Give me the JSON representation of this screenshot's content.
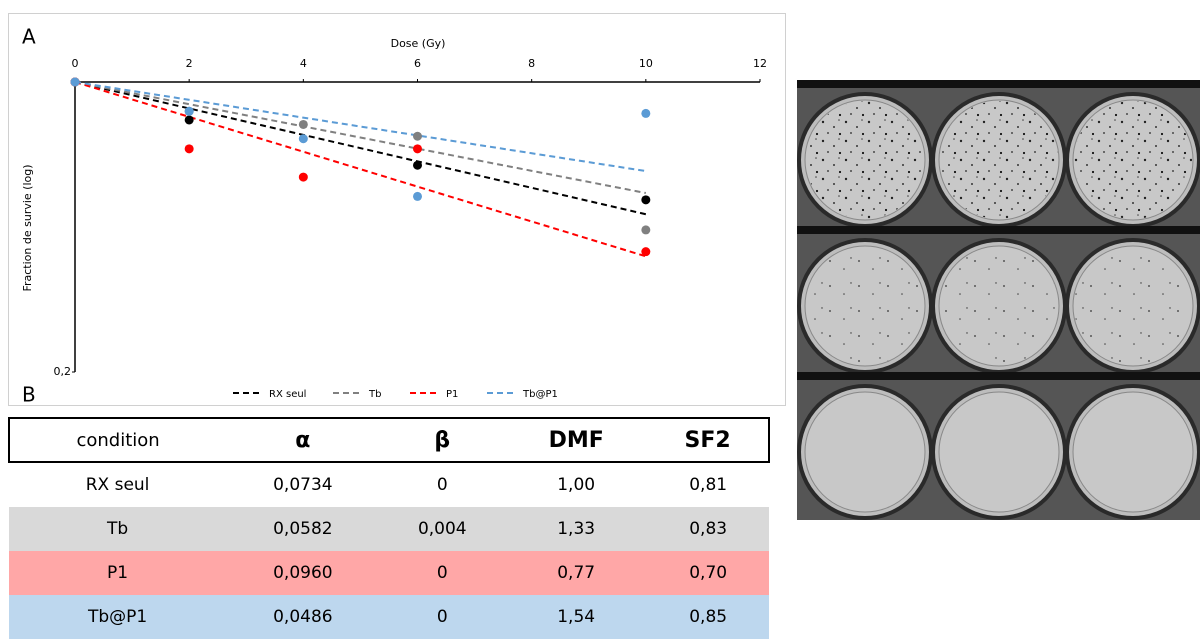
{
  "panel_labels": [
    "A",
    "B"
  ],
  "chart_data": {
    "type": "scatter",
    "x_label": "Dose (Gy)",
    "y_label": "Fraction de survie (log)",
    "xlim": [
      0,
      12
    ],
    "xticks": [
      0,
      2,
      4,
      6,
      8,
      10,
      12
    ],
    "ylim": [
      0.2,
      1
    ],
    "yticks": [
      {
        "value": 0.2,
        "label": "0,2"
      }
    ],
    "y_log": true,
    "grid": false,
    "legend": "bottom",
    "series": [
      {
        "name": "RX seul",
        "color": "#000000",
        "x": [
          0,
          2,
          6,
          10
        ],
        "values": [
          1,
          0.81,
          0.63,
          0.52
        ],
        "fit_x": [
          0,
          10
        ],
        "fit": [
          1,
          0.48
        ]
      },
      {
        "name": "Tb",
        "color": "#808080",
        "x": [
          0,
          2,
          4,
          6,
          10
        ],
        "values": [
          1,
          0.85,
          0.79,
          0.74,
          0.44
        ],
        "fit_x": [
          0,
          10
        ],
        "fit": [
          1,
          0.54
        ]
      },
      {
        "name": "P1",
        "color": "#ff0000",
        "x": [
          0,
          2,
          4,
          6,
          10
        ],
        "values": [
          1,
          0.69,
          0.59,
          0.69,
          0.39
        ],
        "fit_x": [
          0,
          10
        ],
        "fit": [
          1,
          0.38
        ]
      },
      {
        "name": "Tb@P1",
        "color": "#5b9bd5",
        "x": [
          0,
          2,
          4,
          6,
          10
        ],
        "values": [
          1,
          0.85,
          0.73,
          0.53,
          0.84
        ],
        "fit_x": [
          0,
          10
        ],
        "fit": [
          1,
          0.61
        ]
      }
    ]
  },
  "table": {
    "header": [
      "condition",
      "α",
      "β",
      "DMF",
      "SF2"
    ],
    "rows": [
      [
        "RX seul",
        "0,0734",
        "0",
        "1,00",
        "0,81"
      ],
      [
        "Tb",
        "0,0582",
        "0,004",
        "1,33",
        "0,83"
      ],
      [
        "P1",
        "0,0960",
        "0",
        "0,77",
        "0,70"
      ],
      [
        "Tb@P1",
        "0,0486",
        "0",
        "1,54",
        "0,85"
      ]
    ]
  }
}
